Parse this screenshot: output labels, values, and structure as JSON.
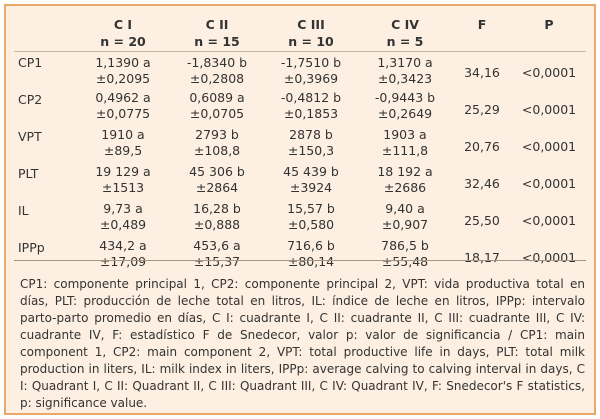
{
  "table": {
    "headers": [
      {
        "line1": "",
        "line2": ""
      },
      {
        "line1": "C I",
        "line2": "n = 20"
      },
      {
        "line1": "C II",
        "line2": "n = 15"
      },
      {
        "line1": "C III",
        "line2": "n = 10"
      },
      {
        "line1": "C IV",
        "line2": "n = 5"
      },
      {
        "line1": "F",
        "line2": ""
      },
      {
        "line1": "P",
        "line2": ""
      }
    ],
    "rows": [
      {
        "label": "CP1",
        "c1": [
          "1,1390 a",
          "±0,2095"
        ],
        "c2": [
          "-1,8340 b",
          "±0,2808"
        ],
        "c3": [
          "-1,7510 b",
          "±0,3969"
        ],
        "c4": [
          "1,3170 a",
          "±0,3423"
        ],
        "f": "34,16",
        "p": "<0,0001"
      },
      {
        "label": "CP2",
        "c1": [
          "0,4962 a",
          "±0,0775"
        ],
        "c2": [
          "0,6089 a",
          "±0,0705"
        ],
        "c3": [
          "-0,4812 b",
          "±0,1853"
        ],
        "c4": [
          "-0,9443 b",
          "±0,2649"
        ],
        "f": "25,29",
        "p": "<0,0001"
      },
      {
        "label": "VPT",
        "c1": [
          "1910 a",
          "±89,5"
        ],
        "c2": [
          "2793 b",
          "±108,8"
        ],
        "c3": [
          "2878 b",
          "±150,3"
        ],
        "c4": [
          "1903 a",
          "±111,8"
        ],
        "f": "20,76",
        "p": "<0,0001"
      },
      {
        "label": "PLT",
        "c1": [
          "19 129 a",
          "±1513"
        ],
        "c2": [
          "45 306 b",
          "±2864"
        ],
        "c3": [
          "45 439 b",
          "±3924"
        ],
        "c4": [
          "18 192 a",
          "±2686"
        ],
        "f": "32,46",
        "p": "<0,0001"
      },
      {
        "label": "IL",
        "c1": [
          "9,73 a",
          "±0,489"
        ],
        "c2": [
          "16,28 b",
          "±0,888"
        ],
        "c3": [
          "15,57 b",
          "±0,580"
        ],
        "c4": [
          "9,40 a",
          "±0,907"
        ],
        "f": "25,50",
        "p": "<0,0001"
      },
      {
        "label": "IPPp",
        "c1": [
          "434,2 a",
          "±17,09"
        ],
        "c2": [
          "453,6 a",
          "±15,37"
        ],
        "c3": [
          "716,6 b",
          "±80,14"
        ],
        "c4": [
          "786,5 b",
          "±55,48"
        ],
        "f": "18,17",
        "p": "<0,0001"
      }
    ]
  },
  "footnote": "CP1: componente principal 1, CP2: componente principal 2, VPT: vida productiva total en días, PLT: producción de leche total en litros, IL: índice de leche en litros, IPPp: intervalo parto-parto promedio en días, C I: cuadrante I, C II: cuadrante II, C III: cuadrante III, C IV: cuadrante IV, F: estadístico F de Snedecor, valor p: valor de significancia / CP1: main component 1, CP2: main component 2, VPT: total productive life in days, PLT: total milk production in liters, IL: milk index in liters, IPPp: average calving to calving interval in days, C I: Quadrant I, C II: Quadrant II, C III: Quadrant III, C IV: Quadrant IV, F: Snedecor's F statistics, p: significance value."
}
